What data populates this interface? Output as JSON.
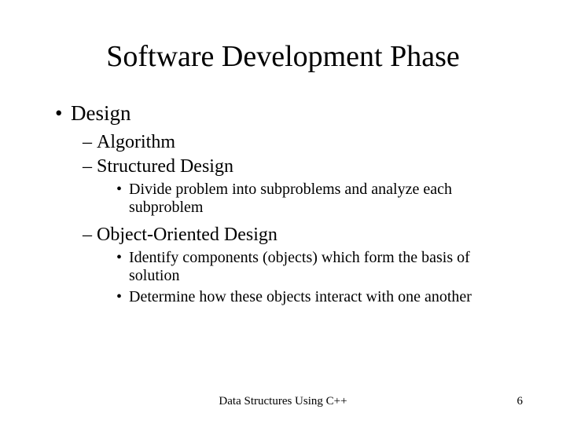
{
  "title": "Software Development Phase",
  "bullets": {
    "l1_1": "Design",
    "l2_1": "Algorithm",
    "l2_2": "Structured Design",
    "l3_1": "Divide problem into subproblems and analyze each subproblem",
    "l2_3": "Object-Oriented Design",
    "l3_2": "Identify components (objects) which form the basis of solution",
    "l3_3": "Determine how these objects interact with one another"
  },
  "footer": {
    "center": "Data Structures Using C++",
    "page": "6"
  },
  "style": {
    "background_color": "#ffffff",
    "text_color": "#000000",
    "font_family": "Times New Roman",
    "title_fontsize": 38,
    "l1_fontsize": 27,
    "l2_fontsize": 24,
    "l3_fontsize": 20,
    "footer_fontsize": 15
  }
}
